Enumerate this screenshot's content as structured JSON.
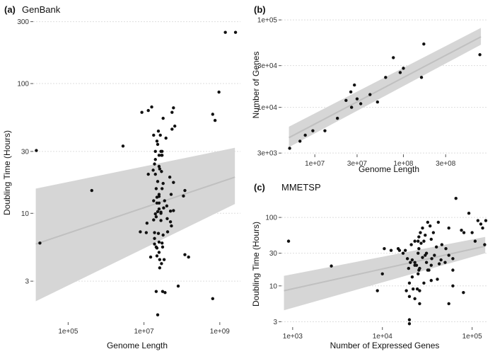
{
  "chart_data": [
    {
      "id": "a",
      "type": "scatter",
      "panel_label": "(a)",
      "title": "GenBank",
      "xlabel": "Genome Length",
      "ylabel": "Doubling Time (Hours)",
      "xscale": "log10",
      "yscale": "log10",
      "xlim": [
        12000.0,
        3500000000.0
      ],
      "ylim": [
        1.45,
        330
      ],
      "xticks": [
        {
          "value": 100000,
          "label": "1e+05"
        },
        {
          "value": 10000000,
          "label": "1e+07"
        },
        {
          "value": 1000000000,
          "label": "1e+09"
        }
      ],
      "yticks": [
        {
          "value": 3,
          "label": "3"
        },
        {
          "value": 10,
          "label": "10"
        },
        {
          "value": 30,
          "label": "30"
        },
        {
          "value": 100,
          "label": "100"
        },
        {
          "value": 300,
          "label": "300"
        }
      ],
      "grid": "horizontal-dotted",
      "trend": {
        "x": [
          14000.0,
          2500000000.0
        ],
        "y": [
          5.8,
          19
        ],
        "band_low": [
          2.1,
          11.8
        ],
        "band_high": [
          15.5,
          32
        ]
      },
      "x": [
        14500.0,
        18000.0,
        420000.0,
        2800000.0,
        8800000.0,
        8000000.0,
        11500000.0,
        13000000.0,
        13000000.0,
        16000000.0,
        17500000.0,
        20000000.0,
        22000000.0,
        25000000.0,
        30000000.0,
        32000000.0,
        38000000.0,
        48000000.0,
        52000000.0,
        50000000.0,
        60000000.0,
        55000000.0,
        60000000.0,
        30000000.0,
        25000000.0,
        40000000.0,
        18000000.0,
        22000000.0,
        22000000.0,
        25000000.0,
        33000000.0,
        35000000.0,
        18000000.0,
        28000000.0,
        12000000.0,
        21000000.0,
        41000000.0,
        50000000.0,
        60000000.0,
        20000000.0,
        23000000.0,
        25000000.0,
        28000000.0,
        19000000.0,
        24000000.0,
        32000000.0,
        42000000.0,
        53000000.0,
        19000000.0,
        21000000.0,
        25000000.0,
        31000000.0,
        19000000.0,
        22000000.0,
        26000000.0,
        15000000.0,
        34000000.0,
        22000000.0,
        26000000.0,
        31000000.0,
        18000000.0,
        23000000.0,
        29000000.0,
        65000000.0,
        55000000.0,
        20000000.0,
        24000000.0,
        28000000.0,
        30000000.0,
        27000000.0,
        20000000.0,
        26000000.0,
        120000000.0,
        110000000.0,
        19000000.0,
        25000000.0,
        29000000.0,
        23000000.0,
        32000000.0,
        21000000.0,
        28000000.0,
        150000000.0,
        120000000.0,
        25000000.0,
        30000000.0,
        80000000.0,
        650000000.0,
        650000000.0,
        750000000.0,
        950000000.0,
        1400000000.0,
        2600000000.0,
        25000000.0,
        29000000.0,
        36000000.0,
        23000000.0,
        21000000.0
      ],
      "y": [
        30.5,
        5.9,
        15,
        33,
        60,
        7.2,
        7.1,
        20,
        62,
        66,
        21.5,
        20,
        36,
        28,
        28,
        54,
        38,
        19,
        14,
        8.6,
        17.3,
        44.5,
        65,
        15.5,
        14,
        11.4,
        12.5,
        13.3,
        12,
        12,
        11,
        12.5,
        8.9,
        8.8,
        8.4,
        9.4,
        9.1,
        10.4,
        10.5,
        9.9,
        10.3,
        10.8,
        10.2,
        7.1,
        7,
        6.8,
        7.2,
        8,
        6.4,
        5.5,
        6,
        5.5,
        5.8,
        4.7,
        4.4,
        4.6,
        4.4,
        5.4,
        3.8,
        2.5,
        40,
        34,
        28,
        47,
        60,
        30,
        43,
        30,
        30,
        40,
        26,
        22,
        15,
        13.6,
        24,
        23,
        21,
        17.6,
        17,
        15.5,
        10,
        4.6,
        4.8,
        5,
        5.9,
        2.75,
        2.2,
        58,
        52,
        86,
        248,
        248,
        13.5,
        4.1,
        2.45,
        1.65,
        2.5
      ]
    },
    {
      "id": "b",
      "type": "scatter",
      "panel_label": "(b)",
      "title": "",
      "xlabel": "Genome Length",
      "ylabel": "Number of Genes",
      "xscale": "log10",
      "yscale": "log10",
      "xlim": [
        4200000.0,
        900000000.0
      ],
      "ylim": [
        2900.0,
        110000.0
      ],
      "xticks": [
        {
          "value": 10000000,
          "label": "1e+07"
        },
        {
          "value": 30000000,
          "label": "3e+07"
        },
        {
          "value": 100000000,
          "label": "1e+08"
        },
        {
          "value": 300000000,
          "label": "3e+08"
        }
      ],
      "yticks": [
        {
          "value": 3000,
          "label": "3e+03"
        },
        {
          "value": 10000,
          "label": "1e+04"
        },
        {
          "value": 30000,
          "label": "3e+04"
        },
        {
          "value": 100000,
          "label": "1e+05"
        }
      ],
      "grid": "horizontal-dotted",
      "trend": {
        "x": [
          5100000.0,
          750000000.0
        ],
        "y": [
          4500.0,
          64000.0
        ],
        "band_low": [
          3500.0,
          52000.0
        ],
        "band_high": [
          6000.0,
          81000.0
        ]
      },
      "x": [
        5200000.0,
        6800000.0,
        7800000.0,
        9500000.0,
        13000000.0,
        18000000.0,
        22500000.0,
        25500000.0,
        26000000.0,
        28000000.0,
        30000000.0,
        33000000.0,
        42000000.0,
        51000000.0,
        63000000.0,
        77000000.0,
        92000000.0,
        100000000.0,
        160000000.0,
        170000000.0,
        730000000.0
      ],
      "y": [
        3400.0,
        4100.0,
        4800.0,
        5400.0,
        5400.0,
        7500.0,
        12000.0,
        15000.0,
        10000.0,
        18000.0,
        12500.0,
        11000.0,
        14000.0,
        11500.0,
        22000.0,
        37000.0,
        25000.0,
        28000.0,
        22000.0,
        53000.0,
        40000.0
      ]
    },
    {
      "id": "c",
      "type": "scatter",
      "panel_label": "(c)",
      "title": "MMETSP",
      "xlabel": "Number of Expressed Genes",
      "ylabel": "Doubling Time (Hours)",
      "xscale": "log10",
      "yscale": "log10",
      "xlim": [
        750,
        150000.0
      ],
      "ylim": [
        2.5,
        200
      ],
      "xticks": [
        {
          "value": 1000,
          "label": "1e+03"
        },
        {
          "value": 10000,
          "label": "1e+04"
        },
        {
          "value": 100000,
          "label": "1e+05"
        }
      ],
      "yticks": [
        {
          "value": 3,
          "label": "3"
        },
        {
          "value": 10,
          "label": "10"
        },
        {
          "value": 30,
          "label": "30"
        },
        {
          "value": 100,
          "label": "100"
        }
      ],
      "grid": "horizontal-dotted",
      "trend": {
        "x": [
          800,
          140000.0
        ],
        "y": [
          8.5,
          38
        ],
        "band_low": [
          4.4,
          30
        ],
        "band_high": [
          14,
          52
        ]
      },
      "x": [
        900,
        2700,
        8800,
        10000.0,
        10500.0,
        12500.0,
        15000.0,
        15500.0,
        17000.0,
        18000.0,
        20000.0,
        20500.0,
        21500.0,
        23000.0,
        24000.0,
        25000.0,
        25500.0,
        26500.0,
        28000.0,
        29000.0,
        30000.0,
        32000.0,
        34000.0,
        37000.0,
        40000.0,
        42000.0,
        46000.0,
        51000.0,
        55000.0,
        61000.0,
        66000.0,
        76000.0,
        81000.0,
        92000.0,
        100000.0,
        108000.0,
        116000.0,
        125000.0,
        131000.0,
        138000.0,
        142000.0,
        19600.0,
        23000.0,
        25500.0,
        28000.0,
        31000.0,
        35500.0,
        45000.0,
        55000.0,
        21500.0,
        25000.0,
        33000.0,
        38000.0,
        50000.0,
        20000.0,
        22000.0,
        24500.0,
        26000.0,
        29000.0,
        35000.0,
        41000.0,
        61000.0,
        20000.0,
        23000.0,
        26000.0,
        18500.0,
        26000.0,
        32000.0,
        35000.0,
        43000.0,
        25000.0,
        31000.0,
        23000.0,
        25500.0,
        61000.0,
        21000.0,
        27000.0,
        35000.0,
        19000.0,
        30000.0,
        55000.0,
        80000.0,
        20000.0
      ],
      "y": [
        45,
        19.5,
        8.5,
        15,
        35,
        33,
        35,
        33,
        30,
        33,
        3.2,
        22,
        24,
        22,
        20,
        45,
        35,
        60,
        70,
        45,
        55,
        85,
        75,
        60,
        37,
        85,
        40,
        35,
        70,
        17,
        190,
        65,
        60,
        115,
        60,
        45,
        90,
        80,
        70,
        40,
        90,
        18,
        20,
        17,
        26,
        22,
        25,
        24,
        28,
        13.5,
        15,
        17,
        28,
        22,
        11,
        9,
        9,
        8.5,
        11,
        12,
        12.5,
        10,
        7,
        6.5,
        5.5,
        8.5,
        18,
        17,
        20,
        21,
        30,
        30,
        45,
        52,
        25,
        40,
        42,
        48,
        25,
        28,
        5.5,
        8,
        2.8
      ]
    }
  ]
}
